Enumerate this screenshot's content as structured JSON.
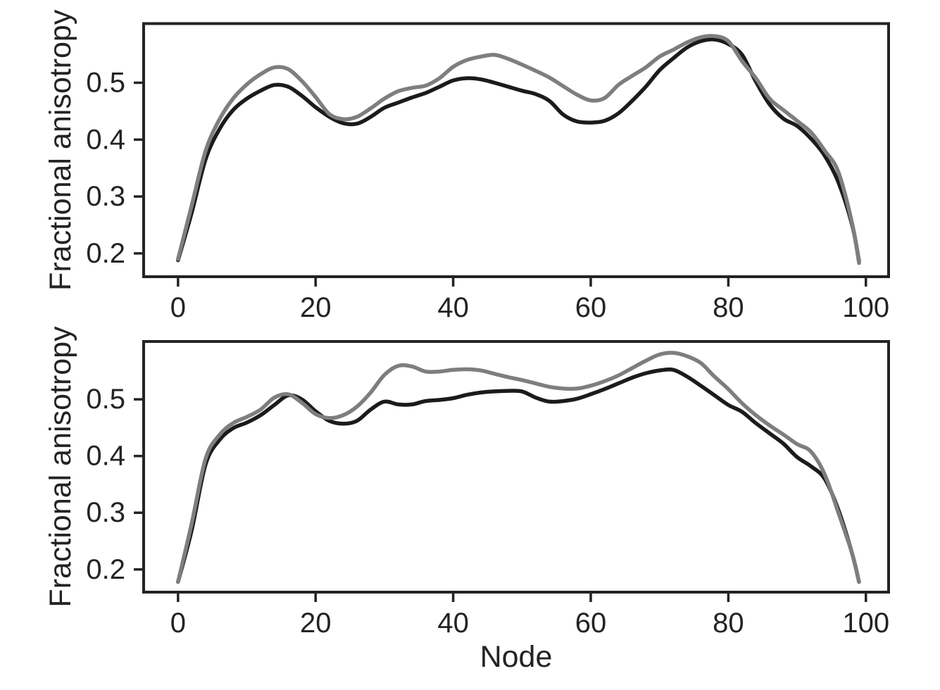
{
  "figure": {
    "background": "#ffffff",
    "axis_color": "#232323",
    "text_color": "#232323"
  },
  "chart_data": [
    {
      "type": "line",
      "panel": "top",
      "title": "",
      "xlabel": "",
      "ylabel": "Fractional anisotropy",
      "grid": false,
      "legend": "none",
      "xlim": [
        -5,
        103.3
      ],
      "ylim": [
        0.159,
        0.604
      ],
      "xticks": [
        0,
        20,
        40,
        60,
        80,
        100
      ],
      "yticks": [
        0.2,
        0.3,
        0.4,
        0.5
      ],
      "x": [
        0,
        2,
        4,
        6,
        8,
        10,
        12,
        14,
        16,
        18,
        20,
        22,
        24,
        26,
        28,
        30,
        32,
        34,
        36,
        38,
        40,
        42,
        44,
        46,
        48,
        50,
        52,
        54,
        56,
        58,
        60,
        62,
        64,
        66,
        68,
        70,
        72,
        74,
        76,
        78,
        80,
        82,
        84,
        86,
        88,
        90,
        92,
        94,
        96,
        98,
        99
      ],
      "series": [
        {
          "name": "black-line",
          "color": "#1b1b1b",
          "values": [
            0.188,
            0.272,
            0.365,
            0.418,
            0.452,
            0.472,
            0.486,
            0.496,
            0.493,
            0.477,
            0.457,
            0.44,
            0.429,
            0.428,
            0.44,
            0.456,
            0.465,
            0.474,
            0.482,
            0.493,
            0.504,
            0.508,
            0.506,
            0.5,
            0.493,
            0.486,
            0.48,
            0.468,
            0.444,
            0.432,
            0.43,
            0.433,
            0.446,
            0.468,
            0.493,
            0.522,
            0.543,
            0.562,
            0.573,
            0.576,
            0.568,
            0.549,
            0.502,
            0.462,
            0.437,
            0.424,
            0.402,
            0.372,
            0.325,
            0.25,
            0.186
          ]
        },
        {
          "name": "gray-line",
          "color": "#7e7e7e",
          "values": [
            0.19,
            0.285,
            0.38,
            0.435,
            0.472,
            0.497,
            0.515,
            0.527,
            0.524,
            0.503,
            0.475,
            0.445,
            0.436,
            0.44,
            0.455,
            0.472,
            0.485,
            0.491,
            0.495,
            0.508,
            0.528,
            0.54,
            0.546,
            0.549,
            0.542,
            0.532,
            0.521,
            0.509,
            0.494,
            0.479,
            0.469,
            0.473,
            0.496,
            0.512,
            0.527,
            0.546,
            0.558,
            0.571,
            0.58,
            0.582,
            0.573,
            0.538,
            0.508,
            0.472,
            0.452,
            0.433,
            0.413,
            0.381,
            0.343,
            0.253,
            0.183
          ]
        }
      ]
    },
    {
      "type": "line",
      "panel": "bottom",
      "title": "",
      "xlabel": "Node",
      "ylabel": "Fractional anisotropy",
      "grid": false,
      "legend": "none",
      "xlim": [
        -5,
        103.3
      ],
      "ylim": [
        0.16,
        0.602
      ],
      "xticks": [
        0,
        20,
        40,
        60,
        80,
        100
      ],
      "yticks": [
        0.2,
        0.3,
        0.4,
        0.5
      ],
      "x": [
        0,
        2,
        4,
        6,
        8,
        10,
        12,
        14,
        16,
        18,
        20,
        22,
        24,
        26,
        28,
        30,
        32,
        34,
        36,
        38,
        40,
        42,
        44,
        46,
        48,
        50,
        52,
        54,
        56,
        58,
        60,
        62,
        64,
        66,
        68,
        70,
        72,
        74,
        76,
        78,
        80,
        82,
        84,
        86,
        88,
        90,
        92,
        94,
        96,
        98,
        99
      ],
      "series": [
        {
          "name": "black-line",
          "color": "#1b1b1b",
          "values": [
            0.178,
            0.27,
            0.385,
            0.428,
            0.449,
            0.459,
            0.472,
            0.49,
            0.507,
            0.5,
            0.479,
            0.462,
            0.457,
            0.462,
            0.482,
            0.496,
            0.491,
            0.491,
            0.497,
            0.499,
            0.502,
            0.508,
            0.512,
            0.514,
            0.515,
            0.514,
            0.503,
            0.496,
            0.497,
            0.501,
            0.509,
            0.518,
            0.528,
            0.538,
            0.546,
            0.551,
            0.552,
            0.54,
            0.524,
            0.507,
            0.49,
            0.478,
            0.458,
            0.44,
            0.422,
            0.398,
            0.382,
            0.36,
            0.305,
            0.228,
            0.178
          ]
        },
        {
          "name": "gray-line",
          "color": "#7e7e7e",
          "values": [
            0.178,
            0.282,
            0.395,
            0.437,
            0.458,
            0.469,
            0.482,
            0.503,
            0.509,
            0.494,
            0.474,
            0.467,
            0.472,
            0.487,
            0.512,
            0.543,
            0.559,
            0.558,
            0.549,
            0.549,
            0.552,
            0.553,
            0.551,
            0.545,
            0.539,
            0.534,
            0.528,
            0.522,
            0.519,
            0.519,
            0.524,
            0.532,
            0.542,
            0.555,
            0.568,
            0.579,
            0.582,
            0.576,
            0.564,
            0.54,
            0.518,
            0.493,
            0.472,
            0.454,
            0.438,
            0.421,
            0.408,
            0.368,
            0.3,
            0.228,
            0.178
          ]
        }
      ]
    }
  ]
}
